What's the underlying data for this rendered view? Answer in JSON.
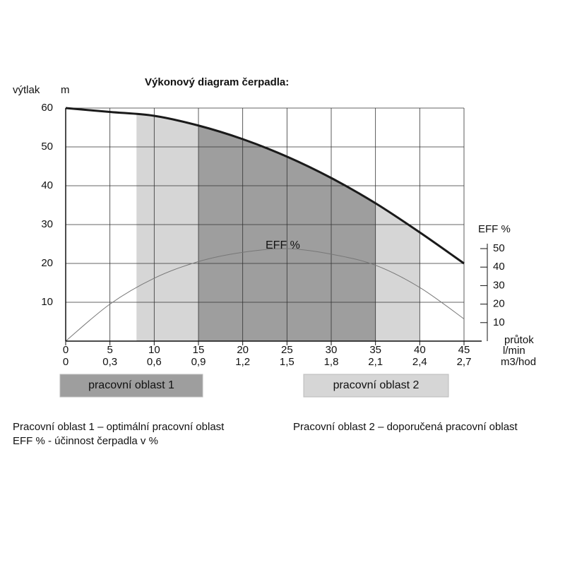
{
  "chart_data": {
    "type": "line",
    "title": "Výkonový diagram čerpadla:",
    "y_label": "výtlak",
    "y_unit": "m",
    "y2_label": "EFF %",
    "x_label": "průtok",
    "x_unit": "l/min",
    "x2_unit": "m3/hod",
    "curve_annotation": "EFF %",
    "x": [
      0,
      5,
      10,
      15,
      20,
      25,
      30,
      35,
      40,
      45
    ],
    "series": [
      {
        "name": "výtlak",
        "color": "#1a1a1a",
        "values": [
          60,
          59,
          58,
          55.5,
          52,
          47.5,
          42,
          35.5,
          28,
          20
        ]
      },
      {
        "name": "EFF %",
        "color": "#777777",
        "axis": "y2",
        "values": [
          0,
          20,
          34,
          43,
          48,
          50,
          47,
          41,
          29,
          12
        ]
      }
    ],
    "regions": [
      {
        "name": "pracovní oblast 1",
        "from": 15,
        "to": 35,
        "color": "#9e9e9e"
      },
      {
        "name": "pracovní oblast 2",
        "from": 8,
        "to": 40,
        "color": "#d6d6d6"
      }
    ],
    "xlim": [
      0,
      45
    ],
    "xticks": [
      0,
      5,
      10,
      15,
      20,
      25,
      30,
      35,
      40,
      45
    ],
    "x2lim": [
      0,
      2.7
    ],
    "x2ticks": [
      0,
      {
        "value": 0.3,
        "label": "0,3"
      },
      {
        "value": 0.6,
        "label": "0,6"
      },
      {
        "value": 0.9,
        "label": "0,9"
      },
      {
        "value": 1.2,
        "label": "1,2"
      },
      {
        "value": 1.5,
        "label": "1,5"
      },
      {
        "value": 1.8,
        "label": "1,8"
      },
      {
        "value": 2.1,
        "label": "2,1"
      },
      {
        "value": 2.4,
        "label": "2,4"
      },
      {
        "value": 2.7,
        "label": "2,7"
      }
    ],
    "ylim": [
      0,
      60
    ],
    "yticks": [
      10,
      20,
      30,
      40,
      50,
      60
    ],
    "y2lim": [
      0,
      50
    ],
    "y2ticks": [
      10,
      20,
      30,
      40,
      50
    ],
    "grid": true,
    "notes": [
      "Pracovní oblast 1 – optimální pracovní oblast",
      "Pracovní oblast 2 – doporučená pracovní oblast",
      "EFF % - účinnost čerpadla v %"
    ]
  }
}
